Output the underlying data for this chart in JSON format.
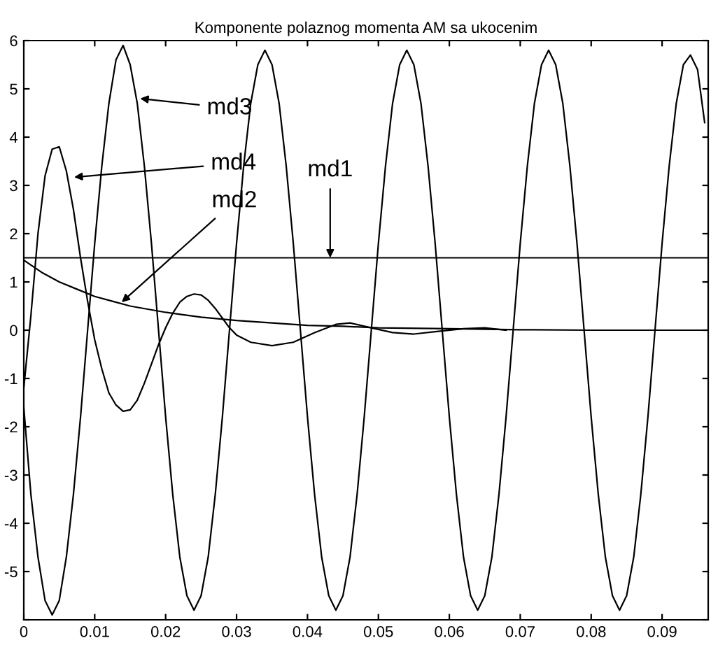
{
  "chart_data": {
    "type": "line",
    "title": "Komponente polaznog momenta AM sa ukocenim",
    "xlim": [
      0,
      0.0965
    ],
    "ylim": [
      -6,
      6
    ],
    "xticks": [
      0,
      0.01,
      0.02,
      0.03,
      0.04,
      0.05,
      0.06,
      0.07,
      0.08,
      0.09
    ],
    "yticks": [
      {
        "value": -6,
        "label": null
      },
      -5,
      -4,
      -3,
      -2,
      -1,
      0,
      1,
      2,
      3,
      4,
      5,
      6
    ],
    "grid": false,
    "legend": false,
    "marker": "none",
    "line_style": "solid",
    "series": [
      {
        "color": "#000000",
        "x": [
          0,
          0.0965
        ],
        "values": [
          1.5,
          1.5
        ]
      },
      {
        "color": "#000000",
        "x": [
          0,
          0.0025,
          0.005,
          0.0075,
          0.01,
          0.0125,
          0.015,
          0.02,
          0.025,
          0.03,
          0.035,
          0.04,
          0.045,
          0.05,
          0.06,
          0.07,
          0.08,
          0.0965
        ],
        "values": [
          1.45,
          1.2,
          1.0,
          0.85,
          0.7,
          0.6,
          0.5,
          0.37,
          0.27,
          0.2,
          0.15,
          0.1,
          0.08,
          0.05,
          0.03,
          0.01,
          0,
          0
        ]
      },
      {
        "color": "#000000",
        "x": [
          0,
          0.001,
          0.002,
          0.003,
          0.004,
          0.005,
          0.006,
          0.007,
          0.008,
          0.009,
          0.01,
          0.011,
          0.012,
          0.013,
          0.014,
          0.015,
          0.016,
          0.017,
          0.018,
          0.019,
          0.02,
          0.021,
          0.022,
          0.023,
          0.024,
          0.025,
          0.026,
          0.027,
          0.028,
          0.029,
          0.03,
          0.031,
          0.032,
          0.033,
          0.034,
          0.035,
          0.036,
          0.037,
          0.038,
          0.039,
          0.04,
          0.041,
          0.042,
          0.043,
          0.044,
          0.045,
          0.046,
          0.047,
          0.048,
          0.049,
          0.05,
          0.051,
          0.052,
          0.053,
          0.054,
          0.055,
          0.056,
          0.057,
          0.058,
          0.059,
          0.06,
          0.061,
          0.062,
          0.063,
          0.064,
          0.065,
          0.066,
          0.067,
          0.068,
          0.069,
          0.07,
          0.071,
          0.072,
          0.073,
          0.074,
          0.075,
          0.076,
          0.077,
          0.078,
          0.079,
          0.08,
          0.081,
          0.082,
          0.083,
          0.084,
          0.085,
          0.086,
          0.087,
          0.088,
          0.089,
          0.09,
          0.091,
          0.092,
          0.093,
          0.094,
          0.095,
          0.096
        ],
        "values": [
          -1.6,
          -3.4,
          -4.7,
          -5.6,
          -5.9,
          -5.6,
          -4.7,
          -3.4,
          -1.8,
          0,
          1.8,
          3.4,
          4.7,
          5.6,
          5.9,
          5.5,
          4.7,
          3.4,
          1.8,
          0,
          -1.8,
          -3.4,
          -4.7,
          -5.5,
          -5.8,
          -5.5,
          -4.7,
          -3.4,
          -1.8,
          0,
          1.8,
          3.4,
          4.7,
          5.5,
          5.8,
          5.5,
          4.7,
          3.4,
          1.8,
          0,
          -1.8,
          -3.4,
          -4.7,
          -5.5,
          -5.8,
          -5.5,
          -4.7,
          -3.4,
          -1.8,
          0,
          1.8,
          3.4,
          4.7,
          5.5,
          5.8,
          5.5,
          4.7,
          3.4,
          1.8,
          0,
          -1.8,
          -3.4,
          -4.7,
          -5.5,
          -5.8,
          -5.5,
          -4.7,
          -3.4,
          -1.8,
          0,
          1.8,
          3.4,
          4.7,
          5.5,
          5.8,
          5.5,
          4.7,
          3.4,
          1.8,
          0,
          -1.8,
          -3.4,
          -4.7,
          -5.5,
          -5.8,
          -5.5,
          -4.7,
          -3.4,
          -1.8,
          0,
          1.8,
          3.4,
          4.7,
          5.5,
          5.7,
          5.4,
          4.3
        ]
      },
      {
        "color": "#000000",
        "x": [
          0,
          0.001,
          0.002,
          0.003,
          0.004,
          0.005,
          0.006,
          0.007,
          0.008,
          0.009,
          0.01,
          0.011,
          0.012,
          0.013,
          0.014,
          0.015,
          0.016,
          0.017,
          0.018,
          0.019,
          0.02,
          0.021,
          0.022,
          0.023,
          0.024,
          0.025,
          0.026,
          0.027,
          0.028,
          0.029,
          0.03,
          0.032,
          0.035,
          0.038,
          0.041,
          0.044,
          0.046,
          0.049,
          0.052,
          0.055,
          0.058,
          0.062,
          0.065,
          0.068
        ],
        "values": [
          -1.2,
          0.3,
          2.0,
          3.2,
          3.75,
          3.8,
          3.3,
          2.5,
          1.5,
          0.6,
          -0.2,
          -0.8,
          -1.3,
          -1.55,
          -1.68,
          -1.65,
          -1.45,
          -1.1,
          -0.7,
          -0.3,
          0.05,
          0.35,
          0.58,
          0.7,
          0.75,
          0.73,
          0.62,
          0.45,
          0.25,
          0.05,
          -0.1,
          -0.25,
          -0.32,
          -0.25,
          -0.05,
          0.12,
          0.15,
          0.05,
          -0.05,
          -0.08,
          -0.03,
          0.03,
          0.05,
          0
        ]
      }
    ],
    "annotations": [
      {
        "text": "md3",
        "x": 0.0164,
        "y": 4.8
      },
      {
        "text": "md4",
        "x": 0.0071,
        "y": 3.17
      },
      {
        "text": "md2",
        "x": 0.0138,
        "y": 0.58
      },
      {
        "text": "md1",
        "x": 0.0432,
        "y": 1.5
      }
    ]
  }
}
